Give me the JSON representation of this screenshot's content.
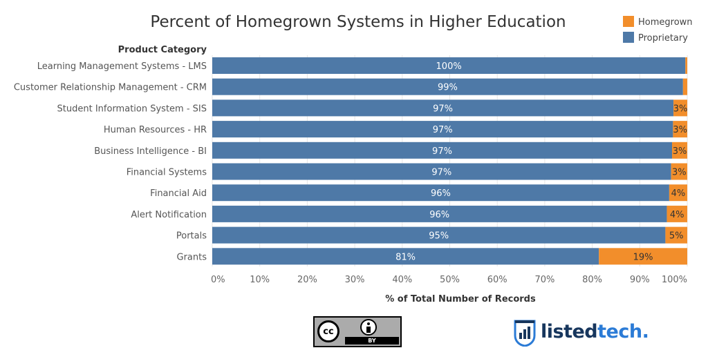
{
  "chart_data": {
    "type": "bar",
    "orientation": "horizontal",
    "stacked": true,
    "title": "Percent of Homegrown Systems in Higher Education",
    "ylabel": "Product Category",
    "xlabel": "% of Total Number of Records",
    "xlim": [
      0,
      100
    ],
    "x_ticks": [
      "0%",
      "10%",
      "20%",
      "30%",
      "40%",
      "50%",
      "60%",
      "70%",
      "80%",
      "90%",
      "100%"
    ],
    "grid": "vertical",
    "legend_position": "top-right",
    "categories": [
      "Learning Management Systems - LMS",
      "Customer Relationship Management - CRM",
      "Student Information System - SIS",
      "Human Resources - HR",
      "Business Intelligence - BI",
      "Financial Systems",
      "Financial Aid",
      "Alert Notification",
      "Portals",
      "Grants"
    ],
    "series": [
      {
        "name": "Proprietary",
        "color": "#4e79a7",
        "values": [
          99.6,
          99.1,
          97.1,
          97.0,
          96.8,
          96.6,
          96.2,
          95.7,
          95.4,
          81.4
        ],
        "labels": [
          "100%",
          "99%",
          "97%",
          "97%",
          "97%",
          "97%",
          "96%",
          "96%",
          "95%",
          "81%"
        ]
      },
      {
        "name": "Homegrown",
        "color": "#f28e2b",
        "values": [
          0.4,
          0.9,
          2.9,
          3.0,
          3.2,
          3.4,
          3.8,
          4.3,
          4.6,
          18.6
        ],
        "labels": [
          "",
          "",
          "3%",
          "3%",
          "3%",
          "3%",
          "4%",
          "4%",
          "5%",
          "19%"
        ]
      }
    ]
  },
  "license": {
    "cc_text": "cc",
    "by_text": "BY"
  },
  "brand": {
    "part1": "listed",
    "part2": "tech",
    "suffix": "."
  }
}
